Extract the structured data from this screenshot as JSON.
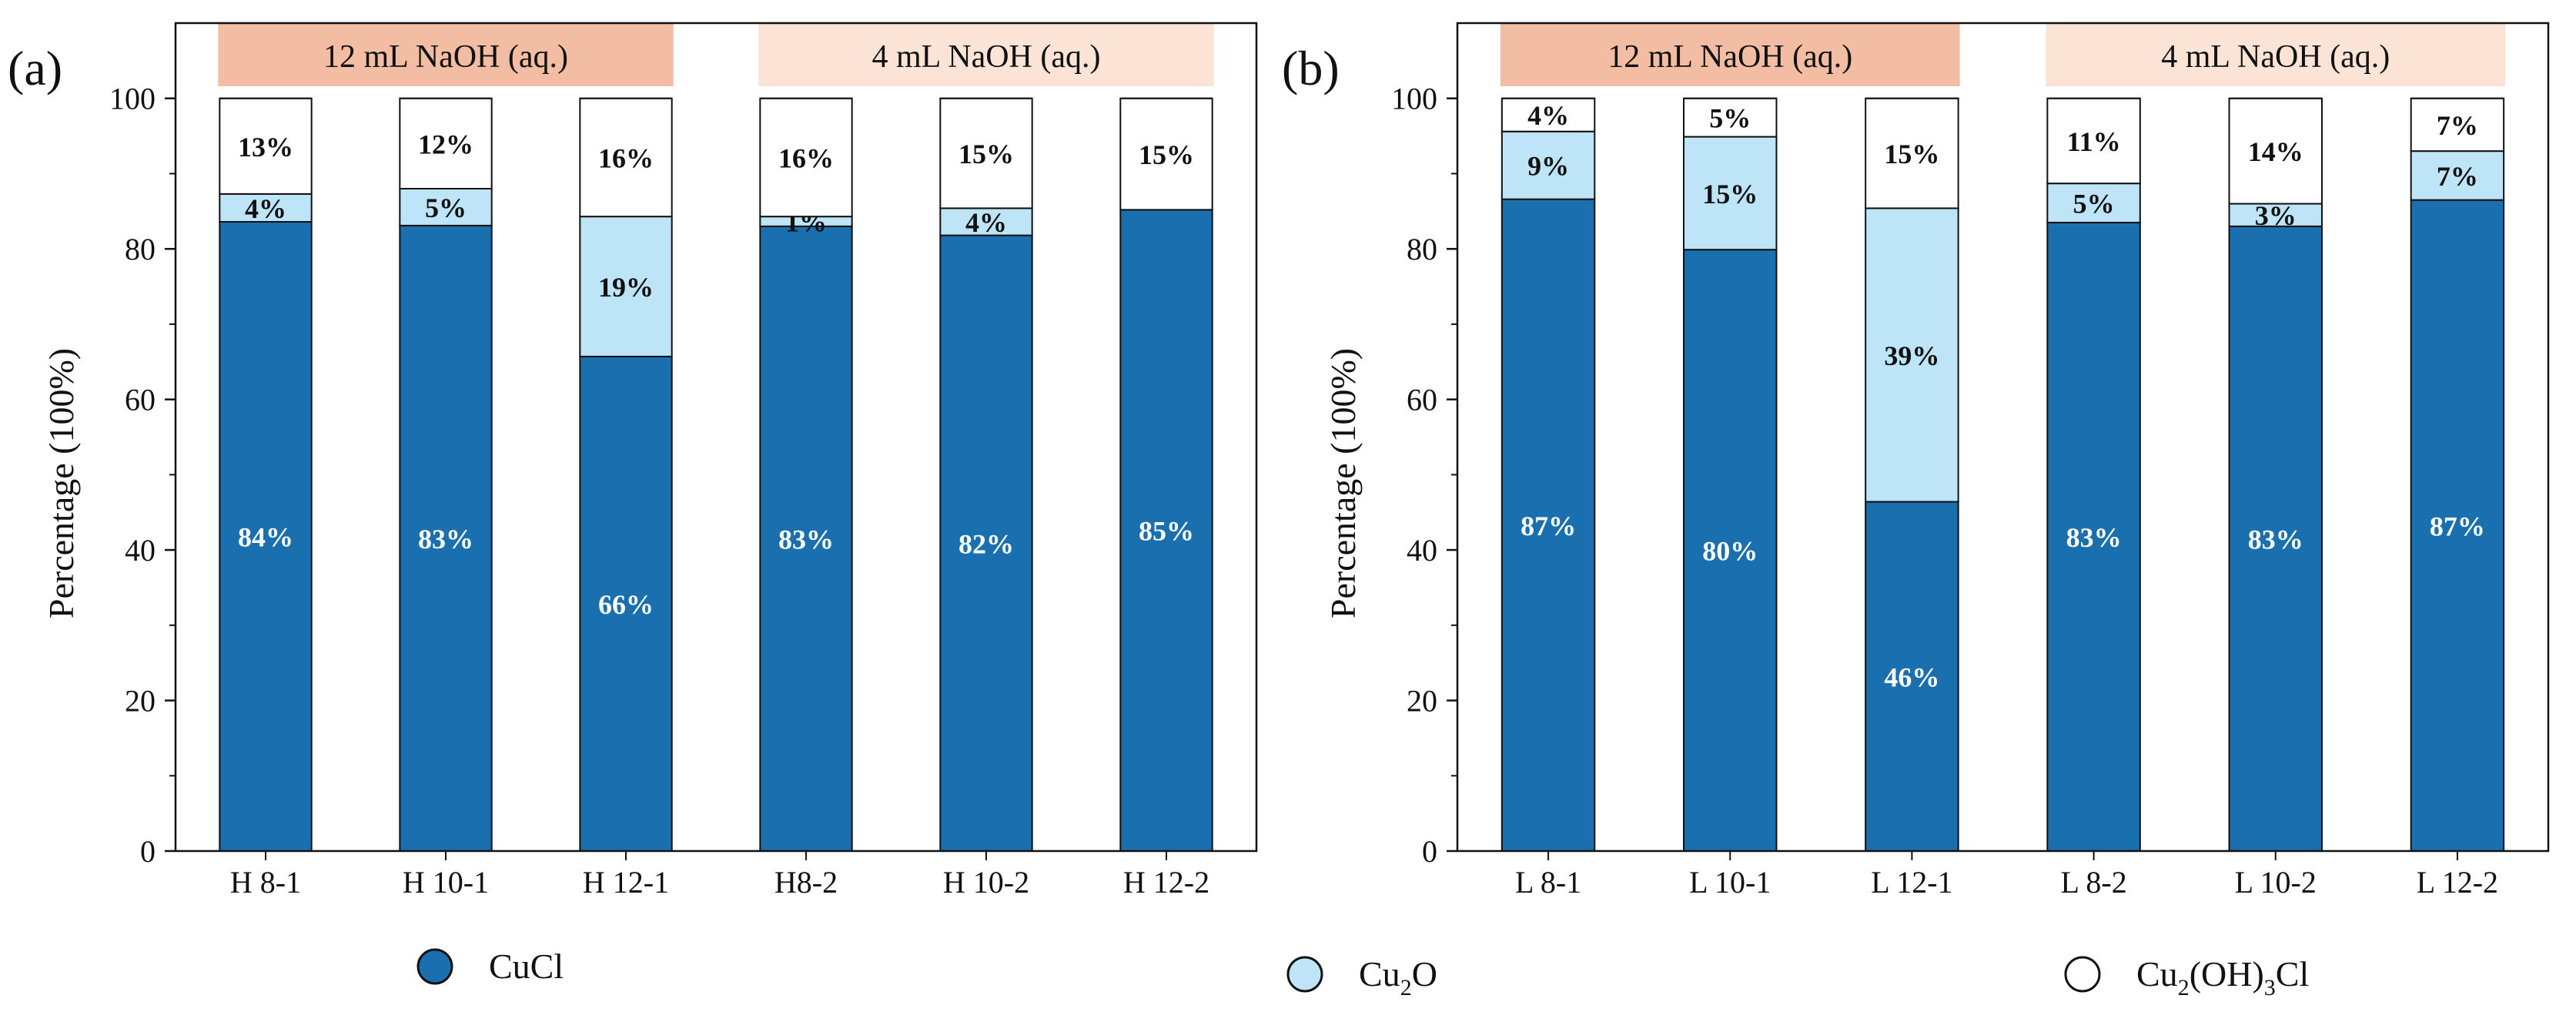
{
  "colors": {
    "cucl": "#1a6fae",
    "cu2o": "#bde5f7",
    "cu2ohcl": "#ffffff",
    "band_high": "#f2bda3",
    "band_low": "#fbe3d6",
    "label_light": "#ffffff",
    "label_dark": "#111111"
  },
  "legend": {
    "items": [
      {
        "key": "cucl",
        "label": "CuCl"
      },
      {
        "key": "cu2o",
        "label": "Cu",
        "sub": "2",
        "rest": "O"
      },
      {
        "key": "cu2ohcl",
        "label": "Cu",
        "sub": "2",
        "mid": "(OH)",
        "sub2": "3",
        "rest": "Cl"
      }
    ]
  },
  "chart_data": [
    {
      "type": "bar",
      "panel_label": "(a)",
      "ylabel": "Percentage (100%)",
      "ylim": [
        0,
        110
      ],
      "yticks": [
        0,
        20,
        40,
        60,
        80,
        100
      ],
      "categories": [
        "H 8-1",
        "H 10-1",
        "H 12-1",
        "H8-2",
        "H 10-2",
        "H 12-2"
      ],
      "groups": [
        {
          "label": "12 mL NaOH (aq.)",
          "range": [
            0,
            2
          ],
          "shade": "high"
        },
        {
          "label": "4 mL NaOH (aq.)",
          "range": [
            3,
            5
          ],
          "shade": "low"
        }
      ],
      "series": [
        {
          "name": "CuCl",
          "key": "cucl",
          "values": [
            83.6,
            83.1,
            65.7,
            83.0,
            81.8,
            85.2
          ],
          "labels": [
            "84%",
            "83%",
            "66%",
            "83%",
            "82%",
            "85%"
          ]
        },
        {
          "name": "Cu2O",
          "key": "cu2o",
          "values": [
            3.7,
            4.9,
            18.6,
            1.3,
            3.6,
            0.0
          ],
          "labels": [
            "4%",
            "5%",
            "19%",
            "1%",
            "4%",
            ""
          ]
        },
        {
          "name": "Cu2(OH)3Cl",
          "key": "cu2ohcl",
          "values": [
            12.7,
            12.0,
            15.7,
            15.7,
            14.6,
            14.8
          ],
          "labels": [
            "13%",
            "12%",
            "16%",
            "16%",
            "15%",
            "15%"
          ]
        }
      ]
    },
    {
      "type": "bar",
      "panel_label": "(b)",
      "ylabel": "Percentage (100%)",
      "ylim": [
        0,
        110
      ],
      "yticks": [
        0,
        20,
        40,
        60,
        80,
        100
      ],
      "categories": [
        "L 8-1",
        "L 10-1",
        "L 12-1",
        "L 8-2",
        "L 10-2",
        "L 12-2"
      ],
      "groups": [
        {
          "label": "12 mL NaOH (aq.)",
          "range": [
            0,
            2
          ],
          "shade": "high"
        },
        {
          "label": "4 mL NaOH (aq.)",
          "range": [
            3,
            5
          ],
          "shade": "low"
        }
      ],
      "series": [
        {
          "name": "CuCl",
          "key": "cucl",
          "values": [
            86.6,
            79.9,
            46.4,
            83.5,
            83.0,
            86.5
          ],
          "labels": [
            "87%",
            "80%",
            "46%",
            "83%",
            "83%",
            "87%"
          ]
        },
        {
          "name": "Cu2O",
          "key": "cu2o",
          "values": [
            9.0,
            15.0,
            39.0,
            5.2,
            3.0,
            6.5
          ],
          "labels": [
            "9%",
            "15%",
            "39%",
            "5%",
            "3%",
            "7%"
          ]
        },
        {
          "name": "Cu2(OH)3Cl",
          "key": "cu2ohcl",
          "values": [
            4.4,
            5.1,
            14.6,
            11.3,
            14.0,
            7.0
          ],
          "labels": [
            "4%",
            "5%",
            "15%",
            "11%",
            "14%",
            "7%"
          ]
        }
      ]
    }
  ]
}
